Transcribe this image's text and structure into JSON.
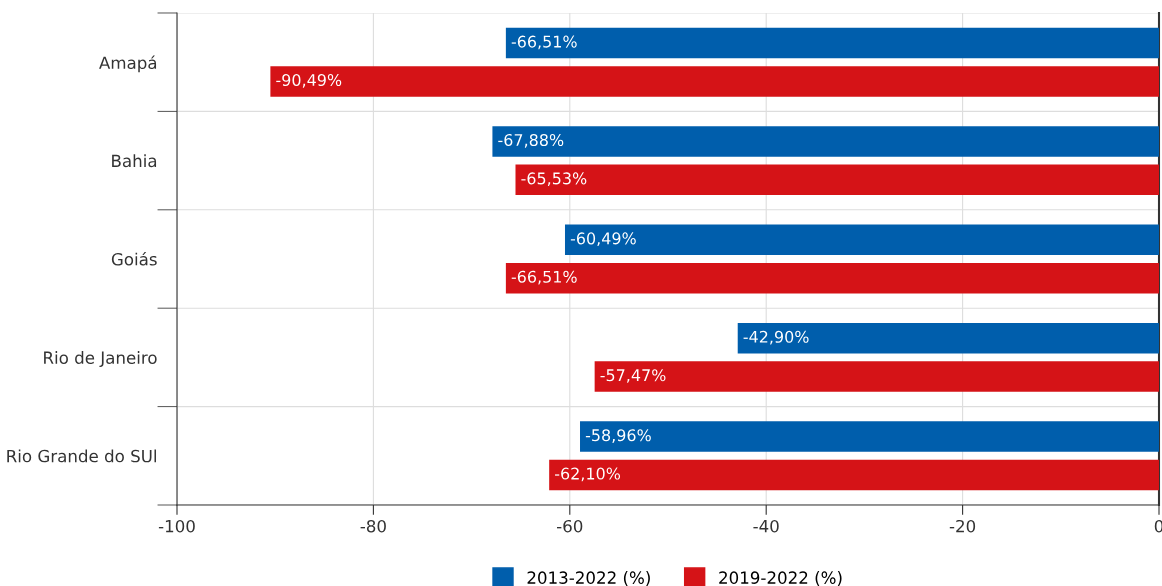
{
  "chart_data": {
    "type": "bar",
    "orientation": "horizontal",
    "categories": [
      "Amapá",
      "Bahia",
      "Goiás",
      "Rio de Janeiro",
      "Rio Grande do SUl"
    ],
    "series": [
      {
        "name": "2013-2022 (%)",
        "color": "#005eac",
        "values": [
          -66.51,
          -67.88,
          -60.49,
          -42.9,
          -58.96
        ],
        "value_labels": [
          "-66,51%",
          "-67,88%",
          "-60,49%",
          "-42,90%",
          "-58,96%"
        ]
      },
      {
        "name": "2019-2022 (%)",
        "color": "#d51317",
        "values": [
          -90.49,
          -65.53,
          -66.51,
          -57.47,
          -62.1
        ],
        "value_labels": [
          "-90,49%",
          "-65,53%",
          "-66,51%",
          "-57,47%",
          "-62,10%"
        ]
      }
    ],
    "xlim": [
      -100,
      0
    ],
    "xticks": [
      -100,
      -80,
      -60,
      -40,
      -20,
      0
    ],
    "grid": true,
    "legend": "bottom"
  }
}
